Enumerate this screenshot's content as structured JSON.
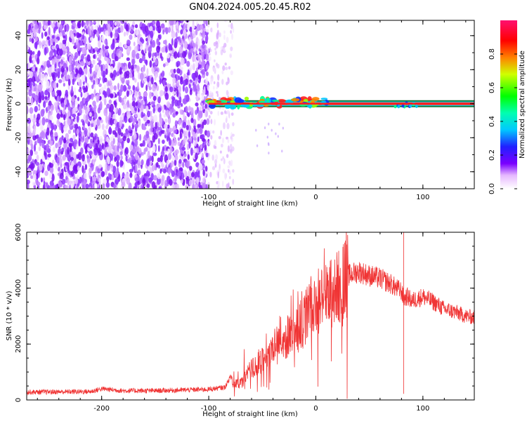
{
  "title": "GN04.2024.005.20.45.R02",
  "chart_data": [
    {
      "type": "heatmap",
      "xlabel": "Height of straight line (km)",
      "ylabel": "Frequency (Hz)",
      "xlim": [
        -270,
        148
      ],
      "ylim": [
        -50,
        49
      ],
      "xticks": [
        -200,
        -100,
        0,
        100
      ],
      "yticks": [
        -40,
        -20,
        0,
        20,
        40
      ],
      "colorbar": {
        "label": "Normalized spectral amplitude",
        "range": [
          0,
          1
        ],
        "ticks": [
          0.0,
          0.2,
          0.4,
          0.6,
          0.8
        ]
      },
      "regions": [
        {
          "description": "broadband noise",
          "x_range": [
            -270,
            -100
          ],
          "freq_range": [
            -50,
            49
          ],
          "amplitude": "low-medium"
        },
        {
          "description": "sparse noise",
          "x_range": [
            -100,
            -77
          ],
          "freq_range": [
            -50,
            49
          ],
          "amplitude": "low"
        },
        {
          "description": "carrier tone onset",
          "x_range": [
            -100,
            0
          ],
          "freq_center": 0,
          "amplitude": "high"
        },
        {
          "description": "steady carrier tone",
          "x_range": [
            0,
            148
          ],
          "freq_center": 0,
          "amplitude": "high"
        }
      ]
    },
    {
      "type": "line",
      "xlabel": "Height of straight line (km)",
      "ylabel": "SNR (10 * v/v)",
      "xlim": [
        -270,
        148
      ],
      "ylim": [
        0,
        6000
      ],
      "xticks": [
        -200,
        -100,
        0,
        100
      ],
      "yticks": [
        0,
        2000,
        4000,
        6000
      ],
      "color": "#f03434",
      "series": [
        {
          "x": [
            -270,
            -240,
            -210,
            -200,
            -180,
            -150,
            -120,
            -100,
            -85,
            -80,
            -75,
            -70,
            -60,
            -50,
            -40,
            -35,
            -30,
            -20,
            -10,
            -5,
            0,
            10,
            20,
            30,
            40,
            50,
            60,
            70,
            75,
            80,
            82,
            85,
            90,
            100,
            110,
            120,
            130,
            140,
            148
          ],
          "values": [
            280,
            290,
            300,
            400,
            330,
            330,
            360,
            380,
            450,
            800,
            550,
            600,
            1100,
            1400,
            1800,
            2300,
            2100,
            2500,
            2900,
            3300,
            3500,
            3700,
            4000,
            4450,
            4600,
            4450,
            4350,
            4150,
            4000,
            3900,
            3600,
            3700,
            3550,
            3700,
            3500,
            3250,
            3150,
            3000,
            2950
          ]
        }
      ],
      "annotations": [
        {
          "x": 82,
          "y": 6000,
          "note": "spike"
        },
        {
          "x": 82,
          "y": 220,
          "note": "dropout"
        }
      ]
    }
  ]
}
